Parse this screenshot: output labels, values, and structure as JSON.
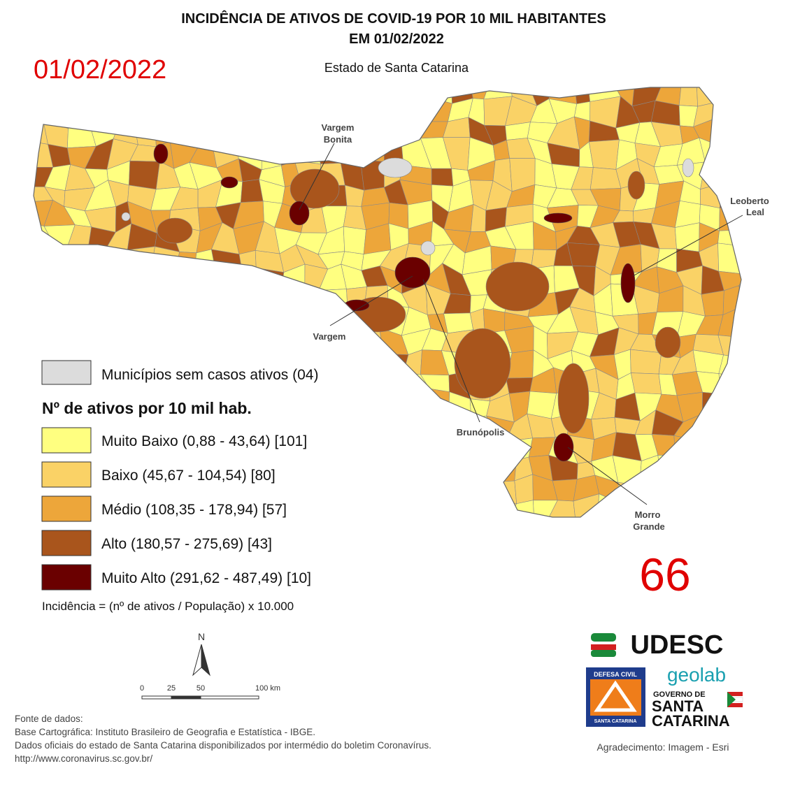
{
  "header": {
    "title_line1": "INCIDÊNCIA DE ATIVOS DE COVID-19 POR 10 MIL HABITANTES",
    "title_line2": "EM 01/02/2022",
    "date_stamp": "01/02/2022",
    "subtitle": "Estado de Santa Catarina"
  },
  "map_labels": [
    {
      "lines": [
        "Vargem",
        "Bonita"
      ]
    },
    {
      "lines": [
        "Leoberto",
        "Leal"
      ]
    },
    {
      "lines": [
        "Vargem"
      ]
    },
    {
      "lines": [
        "Brunópolis"
      ]
    },
    {
      "lines": [
        "Morro",
        "Grande"
      ]
    }
  ],
  "legend": {
    "no_cases": {
      "label": "Municípios sem casos ativos (04)",
      "color": "#dcdcdc"
    },
    "heading": "Nº de ativos por 10 mil hab.",
    "classes": [
      {
        "label": "Muito Baixo (0,88 - 43,64) [101]",
        "color": "#ffff80"
      },
      {
        "label": "Baixo (45,67 - 104,54) [80]",
        "color": "#fad266"
      },
      {
        "label": "Médio (108,35 - 178,94) [57]",
        "color": "#eda63a"
      },
      {
        "label": "Alto (180,57 - 275,69) [43]",
        "color": "#a9551c"
      },
      {
        "label": "Muito Alto (291,62 - 487,49) [10]",
        "color": "#6a0000"
      }
    ],
    "formula": "Incidência = (nº de ativos / População) x 10.000"
  },
  "count": "66",
  "north_arrow": "N",
  "scale_bar": [
    "0",
    "25",
    "50",
    "100 km"
  ],
  "logos": {
    "udesc": "UDESC",
    "geolab": "geolab",
    "defesa_civil_top": "DEFESA CIVIL",
    "defesa_civil_bottom": "SANTA CATARINA",
    "governo_line1": "GOVERNO DE",
    "governo_line2": "SANTA",
    "governo_line3": "CATARINA"
  },
  "sources": [
    "Fonte de dados:",
    "Base Cartográfica: Instituto Brasileiro de Geografia e Estatística - IBGE.",
    "Dados oficiais do estado de Santa Catarina disponibilizados por intermédio do boletim Coronavírus.",
    "http://www.coronavirus.sc.gov.br/"
  ],
  "acknowledgement": "Agradecimento: Imagem - Esri"
}
